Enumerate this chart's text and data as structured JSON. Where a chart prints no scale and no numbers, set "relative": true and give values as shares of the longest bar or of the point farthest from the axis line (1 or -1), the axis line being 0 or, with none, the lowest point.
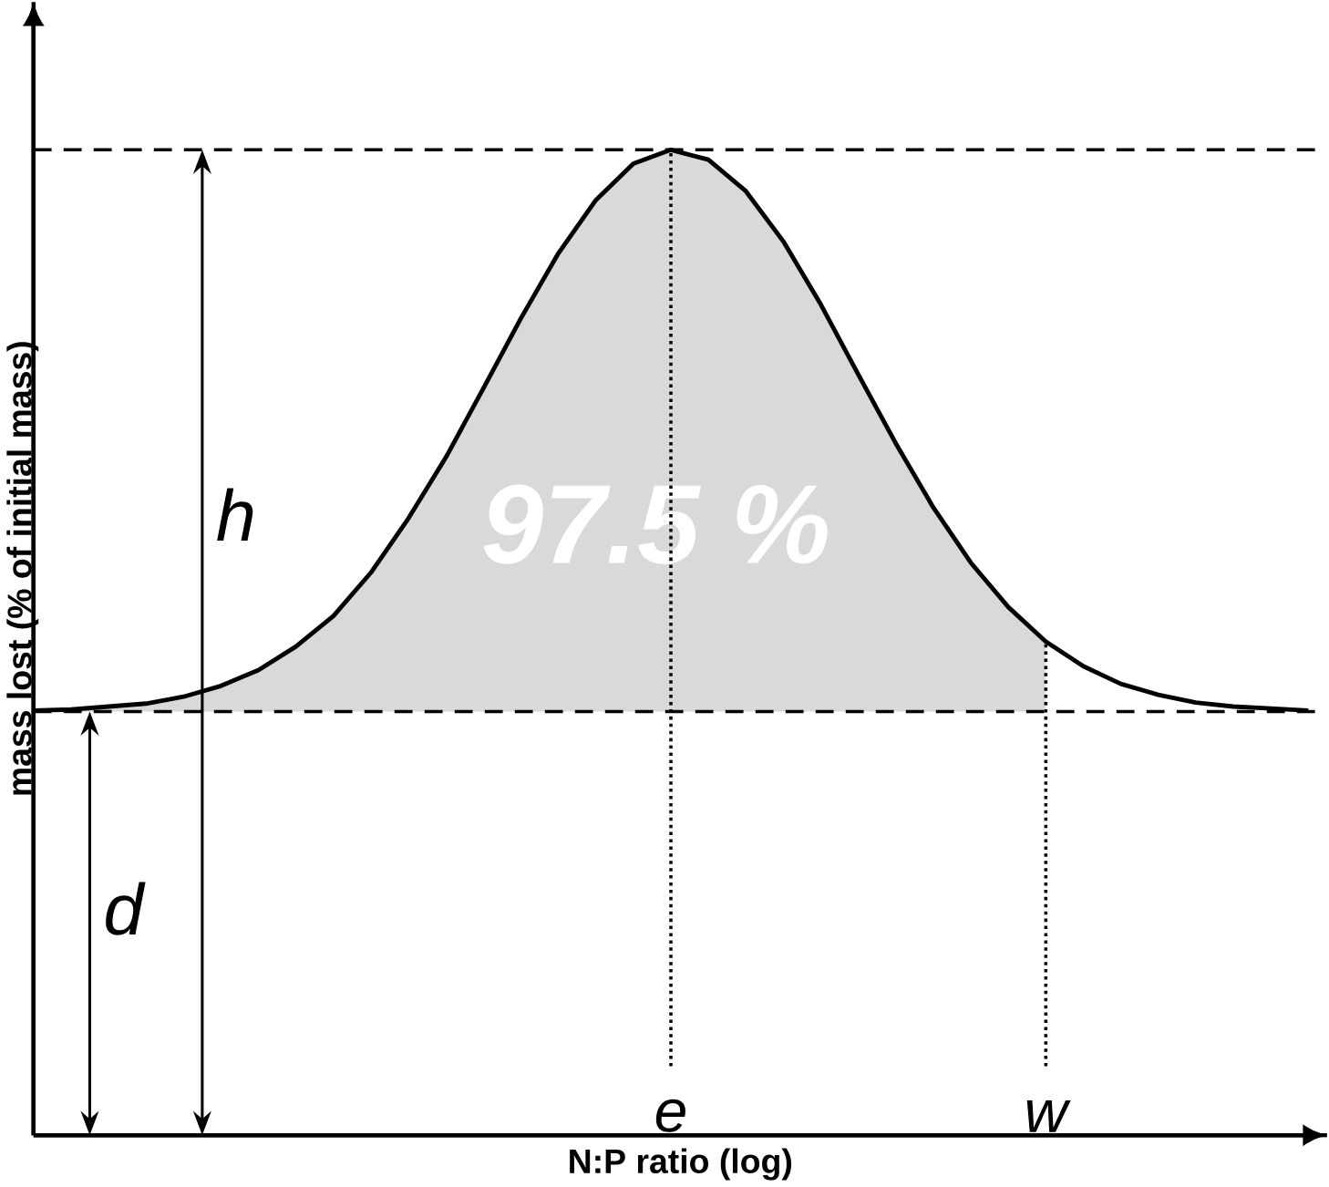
{
  "chart_data": {
    "type": "line",
    "relative": true,
    "xlabel": "N:P ratio (log)",
    "ylabel": "mass lost (% of initial mass)",
    "categories": [
      null,
      null,
      null,
      null,
      null,
      null,
      null,
      null,
      null,
      null,
      null,
      null,
      null,
      null,
      null,
      null,
      null,
      "e",
      null,
      null,
      null,
      null,
      null,
      null,
      null,
      null,
      null,
      "w",
      null,
      null,
      null,
      null,
      null,
      null,
      null
    ],
    "series": [
      {
        "color": "#000000",
        "values": [
          0.431,
          0.432,
          0.435,
          0.438,
          0.445,
          0.456,
          0.472,
          0.496,
          0.527,
          0.571,
          0.626,
          0.688,
          0.758,
          0.829,
          0.895,
          0.949,
          0.986,
          1.0,
          0.99,
          0.958,
          0.907,
          0.843,
          0.772,
          0.702,
          0.637,
          0.581,
          0.536,
          0.501,
          0.476,
          0.458,
          0.447,
          0.439,
          0.435,
          0.433,
          0.431
        ],
        "upper": [
          0.431,
          0.432,
          0.435,
          0.438,
          0.445,
          0.456,
          0.472,
          0.496,
          0.527,
          0.571,
          0.626,
          0.688,
          0.758,
          0.829,
          0.895,
          0.949,
          0.986,
          1.0,
          0.99,
          0.958,
          0.907,
          0.843,
          0.772,
          0.702,
          0.637,
          0.581,
          0.536,
          0.501,
          null,
          null,
          null,
          null,
          null,
          null,
          null
        ],
        "lower": [
          0.43,
          0.43,
          0.43,
          0.43,
          0.43,
          0.43,
          0.43,
          0.43,
          0.43,
          0.43,
          0.43,
          0.43,
          0.43,
          0.43,
          0.43,
          0.43,
          0.43,
          0.43,
          0.43,
          0.43,
          0.43,
          0.43,
          0.43,
          0.43,
          0.43,
          0.43,
          0.43,
          0.43,
          null,
          null,
          null,
          null,
          null,
          null,
          null
        ]
      }
    ],
    "marker": "none",
    "line_style": "solid",
    "ref_lines": [
      {
        "axis": "y",
        "value": 0.43,
        "line_style": "dashed",
        "color": "#000000"
      },
      {
        "axis": "y",
        "value": 1.0,
        "line_style": "dashed",
        "color": "#000000"
      },
      {
        "axis": "x",
        "value": "e",
        "line_style": "dotted",
        "color": "#000000"
      },
      {
        "axis": "x",
        "value": "w",
        "line_style": "dotted",
        "color": "#000000"
      }
    ],
    "annotations": [
      "97.5 %",
      "h",
      "d"
    ]
  }
}
